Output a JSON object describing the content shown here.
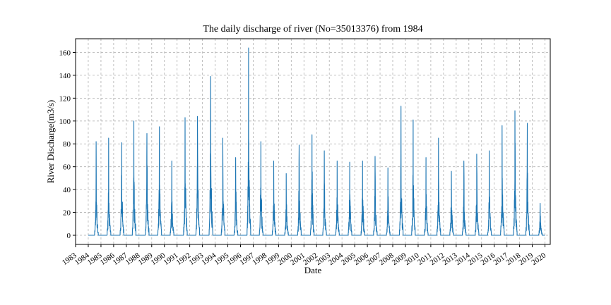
{
  "chart_data": {
    "type": "line",
    "title": "The daily discharge of river (No=35013376) from 1984",
    "xlabel": "Date",
    "ylabel": "River Discharge(m3/s)",
    "x_tick_labels": [
      "1983",
      "1984",
      "1985",
      "1986",
      "1987",
      "1988",
      "1989",
      "1990",
      "1991",
      "1992",
      "1993",
      "1994",
      "1995",
      "1996",
      "1997",
      "1998",
      "1999",
      "2000",
      "2001",
      "2002",
      "2003",
      "2004",
      "2005",
      "2006",
      "2007",
      "2008",
      "2009",
      "2010",
      "2011",
      "2012",
      "2013",
      "2014",
      "2015",
      "2016",
      "2017",
      "2018",
      "2019",
      "2020"
    ],
    "y_ticks": [
      0,
      20,
      40,
      60,
      80,
      100,
      120,
      140,
      160
    ],
    "xlim": [
      "1983-01-01",
      "2020-06-01"
    ],
    "ylim": [
      -8,
      172
    ],
    "grid": true,
    "colors": {
      "series": "#1f77b4"
    },
    "series": [
      {
        "x_start": "1984-01-01",
        "x_end": "2019-12-31",
        "annual_peaks": [
          {
            "year": 1984,
            "date": "1984-08-15",
            "peak": 82
          },
          {
            "year": 1985,
            "date": "1985-08-10",
            "peak": 85
          },
          {
            "year": 1986,
            "date": "1986-08-20",
            "peak": 81
          },
          {
            "year": 1987,
            "date": "1987-08-05",
            "peak": 100
          },
          {
            "year": 1988,
            "date": "1988-08-15",
            "peak": 89
          },
          {
            "year": 1989,
            "date": "1989-08-10",
            "peak": 95
          },
          {
            "year": 1990,
            "date": "1990-08-01",
            "peak": 65
          },
          {
            "year": 1991,
            "date": "1991-08-20",
            "peak": 103
          },
          {
            "year": 1992,
            "date": "1992-08-10",
            "peak": 104
          },
          {
            "year": 1993,
            "date": "1993-08-25",
            "peak": 139
          },
          {
            "year": 1994,
            "date": "1994-08-10",
            "peak": 85
          },
          {
            "year": 1995,
            "date": "1995-08-15",
            "peak": 68
          },
          {
            "year": 1996,
            "date": "1996-08-20",
            "peak": 164
          },
          {
            "year": 1997,
            "date": "1997-08-10",
            "peak": 82
          },
          {
            "year": 1998,
            "date": "1998-08-15",
            "peak": 65
          },
          {
            "year": 1999,
            "date": "1999-08-10",
            "peak": 54
          },
          {
            "year": 2000,
            "date": "2000-08-15",
            "peak": 79
          },
          {
            "year": 2001,
            "date": "2001-08-20",
            "peak": 88
          },
          {
            "year": 2002,
            "date": "2002-08-10",
            "peak": 74
          },
          {
            "year": 2003,
            "date": "2003-08-15",
            "peak": 65
          },
          {
            "year": 2004,
            "date": "2004-08-10",
            "peak": 64
          },
          {
            "year": 2005,
            "date": "2005-08-15",
            "peak": 65
          },
          {
            "year": 2006,
            "date": "2006-08-10",
            "peak": 69
          },
          {
            "year": 2007,
            "date": "2007-08-15",
            "peak": 59
          },
          {
            "year": 2008,
            "date": "2008-08-25",
            "peak": 113
          },
          {
            "year": 2009,
            "date": "2009-08-10",
            "peak": 101
          },
          {
            "year": 2010,
            "date": "2010-08-15",
            "peak": 68
          },
          {
            "year": 2011,
            "date": "2011-08-10",
            "peak": 85
          },
          {
            "year": 2012,
            "date": "2012-08-15",
            "peak": 56
          },
          {
            "year": 2013,
            "date": "2013-08-10",
            "peak": 65
          },
          {
            "year": 2014,
            "date": "2014-08-15",
            "peak": 71
          },
          {
            "year": 2015,
            "date": "2015-08-10",
            "peak": 74
          },
          {
            "year": 2016,
            "date": "2016-08-15",
            "peak": 96
          },
          {
            "year": 2017,
            "date": "2017-08-20",
            "peak": 109
          },
          {
            "year": 2018,
            "date": "2018-08-10",
            "peak": 98
          },
          {
            "year": 2019,
            "date": "2019-08-15",
            "peak": 28
          }
        ],
        "baseline": 0
      }
    ]
  }
}
